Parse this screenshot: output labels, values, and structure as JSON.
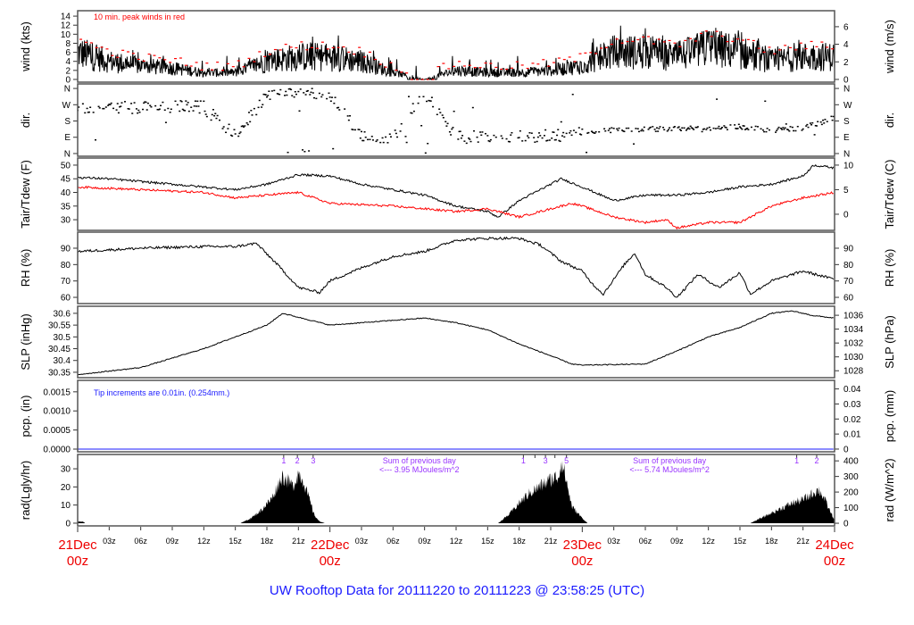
{
  "title": "UW Rooftop Data for 20111220  to  20111223 @ 23:58:25  (UTC)",
  "colors": {
    "black": "#000000",
    "red": "#ff0000",
    "blue": "#1a1aff",
    "purple": "#9933ff"
  },
  "x_axis": {
    "hour_range": [
      0,
      72
    ],
    "ticks": [
      {
        "h": 3,
        "label": "03z"
      },
      {
        "h": 6,
        "label": "06z"
      },
      {
        "h": 9,
        "label": "09z"
      },
      {
        "h": 12,
        "label": "12z"
      },
      {
        "h": 15,
        "label": "15z"
      },
      {
        "h": 18,
        "label": "18z"
      },
      {
        "h": 21,
        "label": "21z"
      },
      {
        "h": 27,
        "label": "03z"
      },
      {
        "h": 30,
        "label": "06z"
      },
      {
        "h": 33,
        "label": "09z"
      },
      {
        "h": 36,
        "label": "12z"
      },
      {
        "h": 39,
        "label": "15z"
      },
      {
        "h": 42,
        "label": "18z"
      },
      {
        "h": 45,
        "label": "21z"
      },
      {
        "h": 51,
        "label": "03z"
      },
      {
        "h": 54,
        "label": "06z"
      },
      {
        "h": 57,
        "label": "09z"
      },
      {
        "h": 60,
        "label": "12z"
      },
      {
        "h": 63,
        "label": "15z"
      },
      {
        "h": 66,
        "label": "18z"
      },
      {
        "h": 69,
        "label": "21z"
      }
    ],
    "days": [
      {
        "h": 0,
        "date": "21Dec",
        "time": "00z"
      },
      {
        "h": 24,
        "date": "22Dec",
        "time": "00z"
      },
      {
        "h": 48,
        "date": "23Dec",
        "time": "00z"
      },
      {
        "h": 72,
        "date": "24Dec",
        "time": "00z"
      }
    ]
  },
  "chart_data": [
    {
      "id": "wind",
      "type": "line",
      "ylabel": "wind (kts)",
      "ylabel_right": "wind (m/s)",
      "ylim": [
        -0.6,
        15.2
      ],
      "ylim_right": [
        -0.31,
        7.82
      ],
      "yticks": [
        0,
        2,
        4,
        6,
        8,
        10,
        12,
        14
      ],
      "yticks_right": [
        0,
        2,
        4,
        6
      ],
      "annotation": "10 min. peak winds in red",
      "series": [
        {
          "name": "wind speed",
          "color": "#000000",
          "h": [
            0,
            3,
            6,
            9,
            12,
            15,
            18,
            21,
            24,
            27,
            30,
            33,
            36,
            39,
            42,
            45,
            48,
            51,
            54,
            57,
            60,
            63,
            66,
            69,
            72
          ],
          "values": [
            6,
            4,
            3,
            2.5,
            1.5,
            1.5,
            4,
            5,
            5,
            4,
            1.5,
            0,
            2,
            1.5,
            1.5,
            2,
            3,
            6,
            6,
            5,
            7,
            6,
            4,
            5,
            5
          ]
        },
        {
          "name": "10 min peak",
          "color": "#ff0000"
        }
      ]
    },
    {
      "id": "dir",
      "type": "scatter",
      "ylabel": "dir.",
      "ylabel_right": "dir.",
      "ylim": [
        -15,
        385
      ],
      "yticks": [
        {
          "v": 0,
          "label": "N"
        },
        {
          "v": 90,
          "label": "E"
        },
        {
          "v": 180,
          "label": "S"
        },
        {
          "v": 270,
          "label": "W"
        },
        {
          "v": 360,
          "label": "N"
        }
      ],
      "series": [
        {
          "name": "wind direction",
          "color": "#000000",
          "h": [
            0,
            3,
            6,
            9,
            12,
            15,
            18,
            21,
            24,
            27,
            30,
            33,
            36,
            39,
            42,
            45,
            48,
            51,
            54,
            57,
            60,
            63,
            66,
            69,
            72
          ],
          "values": [
            250,
            255,
            250,
            262,
            255,
            100,
            320,
            350,
            330,
            100,
            85,
            340,
            90,
            95,
            100,
            95,
            120,
            130,
            135,
            140,
            135,
            150,
            130,
            140,
            200
          ]
        }
      ]
    },
    {
      "id": "temp",
      "type": "line",
      "ylabel": "Tair/Tdew (F)",
      "ylabel_right": "Tair/Tdew (C)",
      "ylim": [
        26.1,
        52.6
      ],
      "ylim_right": [
        -3.28,
        11.44
      ],
      "yticks": [
        30,
        35,
        40,
        45,
        50
      ],
      "yticks_right": [
        0,
        5,
        10
      ],
      "series": [
        {
          "name": "Tair",
          "color": "#000000",
          "h": [
            0,
            3,
            6,
            9,
            12,
            15,
            18,
            21,
            24,
            27,
            30,
            33,
            36,
            39,
            40,
            42,
            45,
            46,
            48,
            51,
            54,
            57,
            60,
            63,
            66,
            69,
            70,
            72
          ],
          "values": [
            45.5,
            45,
            44,
            43,
            42,
            41,
            43,
            46.5,
            46,
            43,
            41,
            39,
            35,
            33,
            31,
            37,
            43,
            45,
            42,
            37,
            39,
            39,
            40,
            42,
            43,
            46,
            50,
            49
          ]
        },
        {
          "name": "Tdew",
          "color": "#ff0000",
          "h": [
            0,
            6,
            12,
            15,
            18,
            21,
            24,
            30,
            36,
            39,
            42,
            45,
            47,
            48,
            51,
            54,
            56,
            57,
            60,
            63,
            66,
            69,
            72
          ],
          "values": [
            42,
            41,
            40,
            38,
            39,
            40,
            36,
            35,
            33,
            34,
            31,
            34,
            36,
            35,
            31,
            29,
            30,
            27,
            29,
            29,
            35,
            38,
            40
          ]
        }
      ]
    },
    {
      "id": "rh",
      "type": "line",
      "ylabel": "RH (%)",
      "ylabel_right": "RH (%)",
      "ylim": [
        56.2,
        99.8
      ],
      "yticks": [
        60,
        70,
        80,
        90
      ],
      "yticks_right": [
        60,
        70,
        80,
        90
      ],
      "series": [
        {
          "name": "RH",
          "color": "#000000",
          "h": [
            0,
            6,
            12,
            15,
            17,
            19,
            21,
            23,
            24,
            27,
            30,
            33,
            36,
            39,
            42,
            44,
            46,
            48,
            49,
            50,
            52,
            53,
            54,
            56,
            57,
            59,
            61,
            63,
            64,
            66,
            69,
            72
          ],
          "values": [
            88,
            90,
            91,
            91,
            93,
            80,
            66,
            63,
            70,
            78,
            85,
            88,
            95,
            96,
            96,
            92,
            82,
            76,
            68,
            62,
            80,
            87,
            74,
            66,
            60,
            74,
            66,
            75,
            62,
            70,
            76,
            71
          ]
        }
      ]
    },
    {
      "id": "slp",
      "type": "line",
      "ylabel": "SLP (inHg)",
      "ylabel_right": "SLP (hPa)",
      "ylim": [
        30.327,
        30.63
      ],
      "ylim_right": [
        1027.0,
        1037.3
      ],
      "yticks": [
        30.35,
        30.4,
        30.45,
        30.5,
        30.55,
        30.6
      ],
      "yticks_right": [
        1028,
        1030,
        1032,
        1034,
        1036
      ],
      "series": [
        {
          "name": "SLP",
          "color": "#000000",
          "h": [
            0,
            6,
            12,
            15,
            18,
            19.5,
            24,
            30,
            33,
            36,
            39,
            42,
            45,
            47,
            48,
            54,
            57,
            60,
            63,
            65,
            66,
            68,
            70,
            72
          ],
          "values": [
            30.34,
            30.37,
            30.45,
            30.5,
            30.55,
            30.6,
            30.55,
            30.57,
            30.58,
            30.56,
            30.53,
            30.47,
            30.42,
            30.385,
            30.38,
            30.385,
            30.44,
            30.5,
            30.54,
            30.58,
            30.6,
            30.61,
            30.59,
            30.58
          ]
        }
      ]
    },
    {
      "id": "pcp",
      "type": "line",
      "ylabel": "pcp. (in)",
      "ylabel_right": "pcp. (mm)",
      "ylim": [
        -7e-05,
        0.0018
      ],
      "ylim_right": [
        -0.0018,
        0.0457
      ],
      "yticks": [
        {
          "v": 0,
          "label": "0.0000"
        },
        {
          "v": 0.0005,
          "label": "0.0005"
        },
        {
          "v": 0.001,
          "label": "0.0010"
        },
        {
          "v": 0.0015,
          "label": "0.0015"
        }
      ],
      "yticks_right": [
        {
          "v": 0,
          "label": "0"
        },
        {
          "v": 0.01,
          "label": "0.01"
        },
        {
          "v": 0.02,
          "label": "0.02"
        },
        {
          "v": 0.03,
          "label": "0.03"
        },
        {
          "v": 0.04,
          "label": "0.04"
        }
      ],
      "annotation": "Tip increments are 0.01in. (0.254mm.)",
      "series": [
        {
          "name": "precip",
          "color": "#1a1aff",
          "h": [
            0,
            72
          ],
          "values": [
            0,
            0
          ]
        }
      ]
    },
    {
      "id": "rad",
      "type": "area",
      "ylabel": "rad(Lgly/hr)",
      "ylabel_right": "rad (W/m^2)",
      "ylim": [
        -1.5,
        37.9
      ],
      "ylim_right": [
        -17,
        441
      ],
      "yticks": [
        0,
        10,
        20,
        30
      ],
      "yticks_right": [
        0,
        100,
        200,
        300,
        400
      ],
      "series": [
        {
          "name": "radiation",
          "color": "#000000",
          "h": [
            0,
            0.5,
            0.7,
            15.5,
            16.5,
            17.5,
            18.5,
            19,
            19.5,
            20,
            20.5,
            21,
            21.5,
            22,
            22.5,
            23,
            23.5,
            40,
            41,
            42,
            43,
            44,
            45,
            45.8,
            46,
            46.5,
            47,
            48,
            48.5,
            64,
            65,
            66,
            67,
            68,
            69,
            70,
            70.5,
            71,
            71.5,
            72
          ],
          "values": [
            1,
            1,
            0,
            0,
            3,
            8,
            15,
            22,
            28,
            25,
            22,
            30,
            25,
            15,
            5,
            1,
            0,
            0,
            5,
            12,
            18,
            22,
            26,
            28,
            38,
            25,
            10,
            3,
            0,
            0,
            3,
            6,
            9,
            12,
            14,
            18,
            20,
            15,
            8,
            2
          ]
        }
      ],
      "markers": [
        {
          "h": 19.6,
          "label": "1"
        },
        {
          "h": 20.9,
          "label": "2"
        },
        {
          "h": 22.4,
          "label": "3"
        },
        {
          "h": 42.4,
          "label": "1"
        },
        {
          "h": 43.5,
          "label": ""
        },
        {
          "h": 44.5,
          "label": "3"
        },
        {
          "h": 45.4,
          "label": ""
        },
        {
          "h": 46.5,
          "label": "5"
        },
        {
          "h": 68.4,
          "label": "1"
        },
        {
          "h": 70.3,
          "label": "2"
        }
      ],
      "daily_sums": [
        {
          "h": 32.5,
          "line1": "Sum of previous day",
          "line2": "<--- 3.95 MJoules/m^2"
        },
        {
          "h": 56.3,
          "line1": "Sum of previous day",
          "line2": "<--- 5.74 MJoules/m^2"
        }
      ]
    }
  ]
}
